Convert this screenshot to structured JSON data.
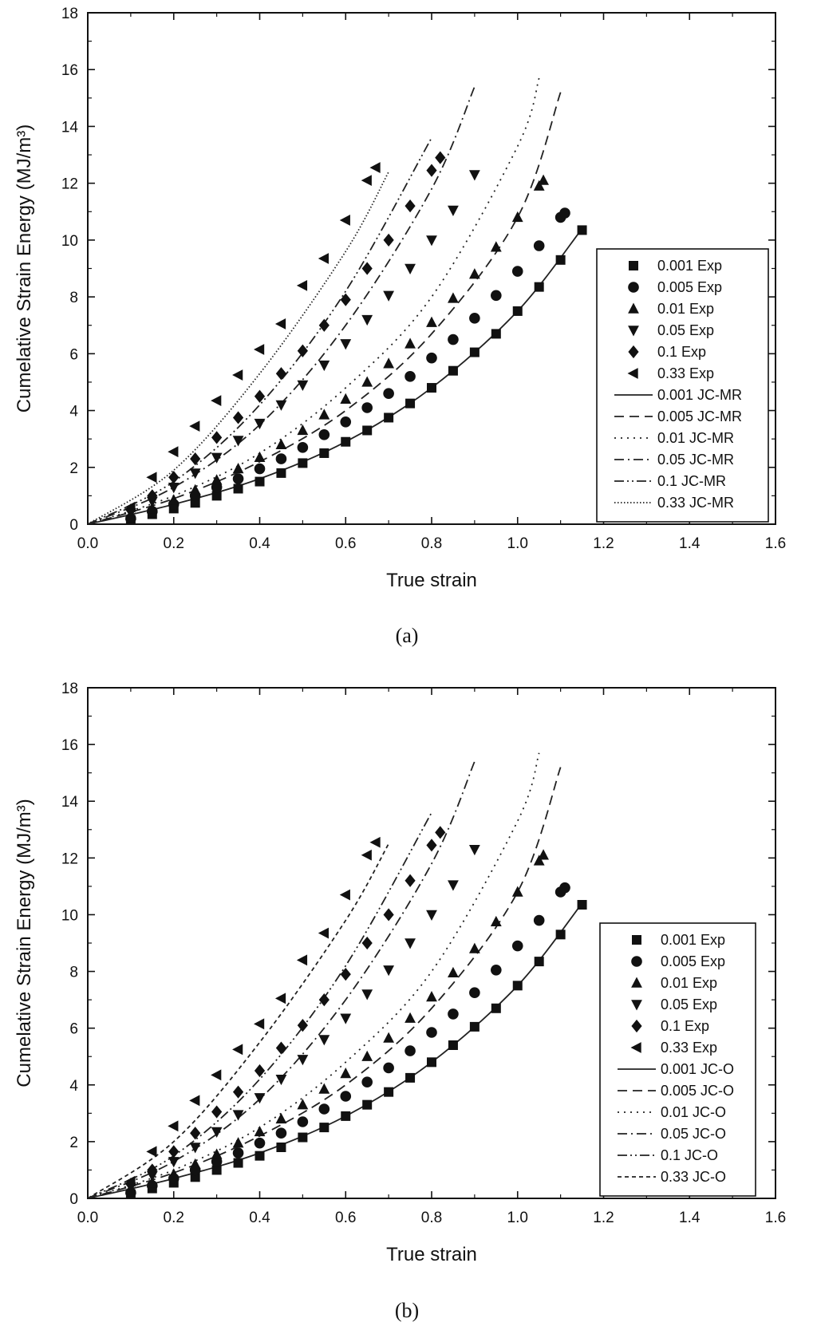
{
  "chart_data": [
    {
      "type": "scatter",
      "panel_label": "(a)",
      "xlabel": "True strain",
      "ylabel": "Cumelative  Strain Energy (MJ/m³)",
      "xlim": [
        0.0,
        1.6
      ],
      "ylim": [
        0,
        18
      ],
      "xticks": [
        "0.0",
        "0.2",
        "0.4",
        "0.6",
        "0.8",
        "1.0",
        "1.2",
        "1.4",
        "1.6"
      ],
      "yticks": [
        "0",
        "2",
        "4",
        "6",
        "8",
        "10",
        "12",
        "14",
        "16",
        "18"
      ],
      "legend_position": "lower-right",
      "series": [
        {
          "name": "0.001 Exp",
          "kind": "marker",
          "marker": "square",
          "x": [
            0.1,
            0.15,
            0.2,
            0.25,
            0.3,
            0.35,
            0.4,
            0.45,
            0.5,
            0.55,
            0.6,
            0.65,
            0.7,
            0.75,
            0.8,
            0.85,
            0.9,
            0.95,
            1.0,
            1.05,
            1.1,
            1.15
          ],
          "y": [
            0.15,
            0.35,
            0.55,
            0.75,
            1.0,
            1.25,
            1.5,
            1.8,
            2.15,
            2.5,
            2.9,
            3.3,
            3.75,
            4.25,
            4.8,
            5.4,
            6.05,
            6.7,
            7.5,
            8.35,
            9.3,
            10.35
          ]
        },
        {
          "name": "0.005 Exp",
          "kind": "marker",
          "marker": "circle",
          "x": [
            0.1,
            0.15,
            0.2,
            0.25,
            0.3,
            0.35,
            0.4,
            0.45,
            0.5,
            0.55,
            0.6,
            0.65,
            0.7,
            0.75,
            0.8,
            0.85,
            0.9,
            0.95,
            1.0,
            1.05,
            1.1,
            1.11
          ],
          "y": [
            0.2,
            0.45,
            0.7,
            1.0,
            1.3,
            1.6,
            1.95,
            2.3,
            2.7,
            3.15,
            3.6,
            4.1,
            4.6,
            5.2,
            5.85,
            6.5,
            7.25,
            8.05,
            8.9,
            9.8,
            10.8,
            10.95
          ]
        },
        {
          "name": "0.01 Exp",
          "kind": "marker",
          "marker": "triangle-up",
          "x": [
            0.1,
            0.15,
            0.2,
            0.25,
            0.3,
            0.35,
            0.4,
            0.45,
            0.5,
            0.55,
            0.6,
            0.65,
            0.7,
            0.75,
            0.8,
            0.85,
            0.9,
            0.95,
            1.0,
            1.05,
            1.06
          ],
          "y": [
            0.3,
            0.55,
            0.85,
            1.2,
            1.55,
            1.95,
            2.35,
            2.8,
            3.3,
            3.85,
            4.4,
            5.0,
            5.65,
            6.35,
            7.1,
            7.95,
            8.8,
            9.75,
            10.8,
            11.9,
            12.1
          ]
        },
        {
          "name": "0.05 Exp",
          "kind": "marker",
          "marker": "triangle-down",
          "x": [
            0.1,
            0.15,
            0.2,
            0.25,
            0.3,
            0.35,
            0.4,
            0.45,
            0.5,
            0.55,
            0.6,
            0.65,
            0.7,
            0.75,
            0.8,
            0.85,
            0.9
          ],
          "y": [
            0.4,
            0.8,
            1.3,
            1.8,
            2.35,
            2.95,
            3.55,
            4.2,
            4.9,
            5.6,
            6.35,
            7.2,
            8.05,
            9.0,
            10.0,
            11.05,
            12.3
          ]
        },
        {
          "name": "0.1 Exp",
          "kind": "marker",
          "marker": "diamond",
          "x": [
            0.1,
            0.15,
            0.2,
            0.25,
            0.3,
            0.35,
            0.4,
            0.45,
            0.5,
            0.55,
            0.6,
            0.65,
            0.7,
            0.75,
            0.8,
            0.82
          ],
          "y": [
            0.5,
            1.0,
            1.65,
            2.3,
            3.05,
            3.75,
            4.5,
            5.3,
            6.1,
            7.0,
            7.9,
            9.0,
            10.0,
            11.2,
            12.45,
            12.9
          ]
        },
        {
          "name": "0.33 Exp",
          "kind": "marker",
          "marker": "triangle-left",
          "x": [
            0.1,
            0.15,
            0.2,
            0.25,
            0.3,
            0.35,
            0.4,
            0.45,
            0.5,
            0.55,
            0.6,
            0.65,
            0.67
          ],
          "y": [
            0.6,
            1.65,
            2.55,
            3.45,
            4.35,
            5.25,
            6.15,
            7.05,
            8.4,
            9.35,
            10.7,
            12.1,
            12.55
          ]
        },
        {
          "name": "0.001 JC-MR",
          "kind": "line",
          "dash": "solid",
          "x": [
            0.0,
            0.2,
            0.4,
            0.6,
            0.8,
            1.0,
            1.15
          ],
          "y": [
            0.0,
            0.7,
            1.6,
            2.9,
            4.8,
            7.5,
            10.4
          ]
        },
        {
          "name": "0.005 JC-MR",
          "kind": "line",
          "dash": "dash",
          "x": [
            0.0,
            0.2,
            0.4,
            0.6,
            0.8,
            1.0,
            1.1
          ],
          "y": [
            0.0,
            0.9,
            2.2,
            4.0,
            6.7,
            10.8,
            15.2
          ]
        },
        {
          "name": "0.01 JC-MR",
          "kind": "line",
          "dash": "dot",
          "x": [
            0.0,
            0.2,
            0.4,
            0.6,
            0.8,
            1.0,
            1.05
          ],
          "y": [
            0.0,
            1.0,
            2.5,
            4.8,
            8.0,
            13.3,
            15.7
          ]
        },
        {
          "name": "0.05 JC-MR",
          "kind": "line",
          "dash": "dashdot",
          "x": [
            0.0,
            0.2,
            0.4,
            0.6,
            0.8,
            0.9
          ],
          "y": [
            0.0,
            1.3,
            3.5,
            7.0,
            11.8,
            15.4
          ]
        },
        {
          "name": "0.1 JC-MR",
          "kind": "line",
          "dash": "dashdotdot",
          "x": [
            0.0,
            0.2,
            0.4,
            0.6,
            0.8
          ],
          "y": [
            0.0,
            1.5,
            4.2,
            8.2,
            13.6
          ]
        },
        {
          "name": "0.33 JC-MR",
          "kind": "line",
          "dash": "densedot",
          "x": [
            0.0,
            0.2,
            0.4,
            0.6,
            0.7
          ],
          "y": [
            0.0,
            1.9,
            5.3,
            9.6,
            12.4
          ]
        }
      ]
    },
    {
      "type": "scatter",
      "panel_label": "(b)",
      "xlabel": "True strain",
      "ylabel": "Cumelative  Strain Energy (MJ/m³)",
      "xlim": [
        0.0,
        1.6
      ],
      "ylim": [
        0,
        18
      ],
      "xticks": [
        "0.0",
        "0.2",
        "0.4",
        "0.6",
        "0.8",
        "1.0",
        "1.2",
        "1.4",
        "1.6"
      ],
      "yticks": [
        "0",
        "2",
        "4",
        "6",
        "8",
        "10",
        "12",
        "14",
        "16",
        "18"
      ],
      "legend_position": "lower-right",
      "series": [
        {
          "name": "0.001 Exp",
          "kind": "marker",
          "marker": "square",
          "x": [
            0.1,
            0.15,
            0.2,
            0.25,
            0.3,
            0.35,
            0.4,
            0.45,
            0.5,
            0.55,
            0.6,
            0.65,
            0.7,
            0.75,
            0.8,
            0.85,
            0.9,
            0.95,
            1.0,
            1.05,
            1.1,
            1.15
          ],
          "y": [
            0.15,
            0.35,
            0.55,
            0.75,
            1.0,
            1.25,
            1.5,
            1.8,
            2.15,
            2.5,
            2.9,
            3.3,
            3.75,
            4.25,
            4.8,
            5.4,
            6.05,
            6.7,
            7.5,
            8.35,
            9.3,
            10.35
          ]
        },
        {
          "name": "0.005 Exp",
          "kind": "marker",
          "marker": "circle",
          "x": [
            0.1,
            0.15,
            0.2,
            0.25,
            0.3,
            0.35,
            0.4,
            0.45,
            0.5,
            0.55,
            0.6,
            0.65,
            0.7,
            0.75,
            0.8,
            0.85,
            0.9,
            0.95,
            1.0,
            1.05,
            1.1,
            1.11
          ],
          "y": [
            0.2,
            0.45,
            0.7,
            1.0,
            1.3,
            1.6,
            1.95,
            2.3,
            2.7,
            3.15,
            3.6,
            4.1,
            4.6,
            5.2,
            5.85,
            6.5,
            7.25,
            8.05,
            8.9,
            9.8,
            10.8,
            10.95
          ]
        },
        {
          "name": "0.01 Exp",
          "kind": "marker",
          "marker": "triangle-up",
          "x": [
            0.1,
            0.15,
            0.2,
            0.25,
            0.3,
            0.35,
            0.4,
            0.45,
            0.5,
            0.55,
            0.6,
            0.65,
            0.7,
            0.75,
            0.8,
            0.85,
            0.9,
            0.95,
            1.0,
            1.05,
            1.06
          ],
          "y": [
            0.3,
            0.55,
            0.85,
            1.2,
            1.55,
            1.95,
            2.35,
            2.8,
            3.3,
            3.85,
            4.4,
            5.0,
            5.65,
            6.35,
            7.1,
            7.95,
            8.8,
            9.75,
            10.8,
            11.9,
            12.1
          ]
        },
        {
          "name": "0.05 Exp",
          "kind": "marker",
          "marker": "triangle-down",
          "x": [
            0.1,
            0.15,
            0.2,
            0.25,
            0.3,
            0.35,
            0.4,
            0.45,
            0.5,
            0.55,
            0.6,
            0.65,
            0.7,
            0.75,
            0.8,
            0.85,
            0.9
          ],
          "y": [
            0.4,
            0.8,
            1.3,
            1.8,
            2.35,
            2.95,
            3.55,
            4.2,
            4.9,
            5.6,
            6.35,
            7.2,
            8.05,
            9.0,
            10.0,
            11.05,
            12.3
          ]
        },
        {
          "name": "0.1 Exp",
          "kind": "marker",
          "marker": "diamond",
          "x": [
            0.1,
            0.15,
            0.2,
            0.25,
            0.3,
            0.35,
            0.4,
            0.45,
            0.5,
            0.55,
            0.6,
            0.65,
            0.7,
            0.75,
            0.8,
            0.82
          ],
          "y": [
            0.5,
            1.0,
            1.65,
            2.3,
            3.05,
            3.75,
            4.5,
            5.3,
            6.1,
            7.0,
            7.9,
            9.0,
            10.0,
            11.2,
            12.45,
            12.9
          ]
        },
        {
          "name": "0.33 Exp",
          "kind": "marker",
          "marker": "triangle-left",
          "x": [
            0.1,
            0.15,
            0.2,
            0.25,
            0.3,
            0.35,
            0.4,
            0.45,
            0.5,
            0.55,
            0.6,
            0.65,
            0.67
          ],
          "y": [
            0.6,
            1.65,
            2.55,
            3.45,
            4.35,
            5.25,
            6.15,
            7.05,
            8.4,
            9.35,
            10.7,
            12.1,
            12.55
          ]
        },
        {
          "name": "0.001 JC-O",
          "kind": "line",
          "dash": "solid",
          "x": [
            0.0,
            0.2,
            0.4,
            0.6,
            0.8,
            1.0,
            1.15
          ],
          "y": [
            0.0,
            0.7,
            1.6,
            2.9,
            4.8,
            7.5,
            10.4
          ]
        },
        {
          "name": "0.005 JC-O",
          "kind": "line",
          "dash": "dash",
          "x": [
            0.0,
            0.2,
            0.4,
            0.6,
            0.8,
            1.0,
            1.1
          ],
          "y": [
            0.0,
            0.9,
            2.2,
            4.0,
            6.7,
            10.8,
            15.2
          ]
        },
        {
          "name": "0.01 JC-O",
          "kind": "line",
          "dash": "dot",
          "x": [
            0.0,
            0.2,
            0.4,
            0.6,
            0.8,
            1.0,
            1.05
          ],
          "y": [
            0.0,
            1.0,
            2.5,
            4.8,
            8.0,
            13.3,
            15.7
          ]
        },
        {
          "name": "0.05 JC-O",
          "kind": "line",
          "dash": "dashdot",
          "x": [
            0.0,
            0.2,
            0.4,
            0.6,
            0.8,
            0.9
          ],
          "y": [
            0.0,
            1.3,
            3.5,
            7.0,
            11.8,
            15.4
          ]
        },
        {
          "name": "0.1 JC-O",
          "kind": "line",
          "dash": "dashdotdot",
          "x": [
            0.0,
            0.2,
            0.4,
            0.6,
            0.8
          ],
          "y": [
            0.0,
            1.5,
            4.2,
            8.2,
            13.6
          ]
        },
        {
          "name": "0.33 JC-O",
          "kind": "line",
          "dash": "shortdash",
          "x": [
            0.0,
            0.2,
            0.4,
            0.6,
            0.7
          ],
          "y": [
            0.0,
            2.0,
            5.5,
            9.8,
            12.5
          ]
        }
      ]
    }
  ]
}
